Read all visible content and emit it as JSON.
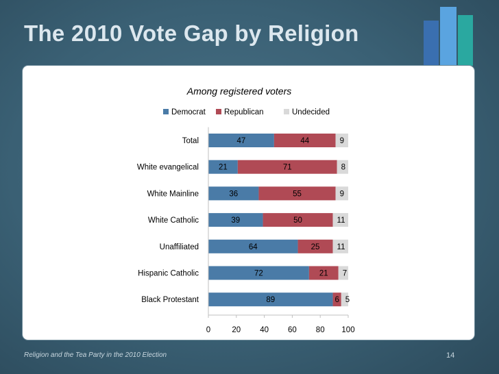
{
  "slide": {
    "title": "The 2010 Vote Gap by Religion",
    "footer": "Religion and the Tea Party in the 2010 Election",
    "page_number": "14"
  },
  "colors": {
    "democrat": "#4a7ba7",
    "republican": "#b04a55",
    "undecided": "#d9d9d9",
    "logo": [
      "#3a6fb0",
      "#5aa4e0",
      "#2aa8a0"
    ]
  },
  "chart_data": {
    "type": "bar",
    "orientation": "horizontal",
    "stacked": true,
    "title": "Among registered voters",
    "categories": [
      "Total",
      "White evangelical",
      "White Mainline",
      "White Catholic",
      "Unaffiliated",
      "Hispanic Catholic",
      "Black Protestant"
    ],
    "series": [
      {
        "name": "Democrat",
        "values": [
          47,
          21,
          36,
          39,
          64,
          72,
          89
        ]
      },
      {
        "name": "Republican",
        "values": [
          44,
          71,
          55,
          50,
          25,
          21,
          6
        ]
      },
      {
        "name": "Undecided",
        "values": [
          9,
          8,
          9,
          11,
          11,
          7,
          5
        ]
      }
    ],
    "xlim": [
      0,
      100
    ],
    "xticks": [
      0,
      20,
      40,
      60,
      80,
      100
    ],
    "legend": "top",
    "grid": false
  }
}
